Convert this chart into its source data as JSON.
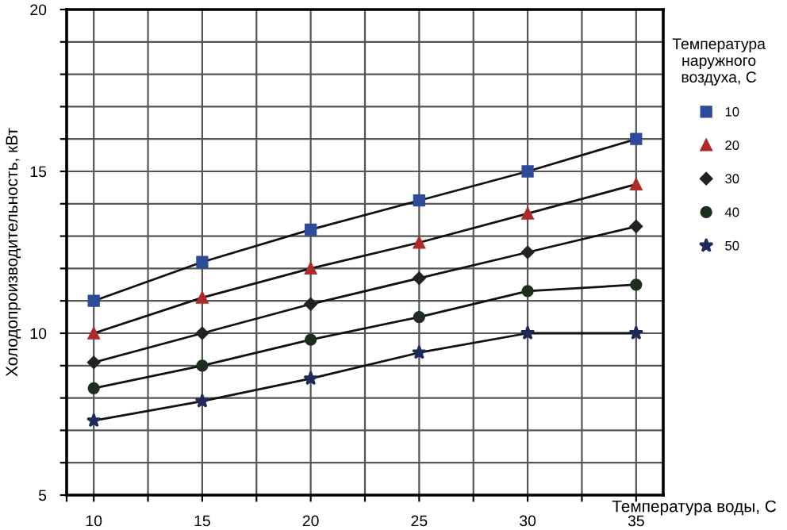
{
  "chart_data": {
    "type": "line",
    "xlabel": "Температура воды, С",
    "ylabel": "Холодопроизводительность, кВт",
    "legend_title": "Температура\nнаружного\nвоздуха, С",
    "x": [
      10,
      15,
      20,
      25,
      30,
      35
    ],
    "xlim": [
      8.75,
      36.25
    ],
    "xticks": [
      {
        "value": 8.75,
        "label": null
      },
      10,
      {
        "value": 12.5,
        "label": null
      },
      15,
      {
        "value": 17.5,
        "label": null
      },
      20,
      {
        "value": 22.5,
        "label": null
      },
      25,
      {
        "value": 27.5,
        "label": null
      },
      30,
      {
        "value": 32.5,
        "label": null
      },
      35
    ],
    "ylim": [
      5,
      20
    ],
    "yticks": [
      5,
      {
        "value": 6,
        "label": null
      },
      {
        "value": 7,
        "label": null
      },
      {
        "value": 8,
        "label": null
      },
      {
        "value": 9,
        "label": null
      },
      10,
      {
        "value": 11,
        "label": null
      },
      {
        "value": 12,
        "label": null
      },
      {
        "value": 13,
        "label": null
      },
      {
        "value": 14,
        "label": null
      },
      15,
      {
        "value": 16,
        "label": null
      },
      {
        "value": 17,
        "label": null
      },
      {
        "value": 18,
        "label": null
      },
      {
        "value": 19,
        "label": null
      },
      20
    ],
    "grid": true,
    "legend": "right",
    "line_style": "solid",
    "series": [
      {
        "name": "10",
        "color": "#2e4a9a",
        "marker": "square",
        "values": [
          11.0,
          12.2,
          13.2,
          14.1,
          15.0,
          16.0
        ]
      },
      {
        "name": "20",
        "color": "#b02a2a",
        "marker": "triangle",
        "values": [
          10.0,
          11.1,
          12.0,
          12.8,
          13.7,
          14.6
        ]
      },
      {
        "name": "30",
        "color": "#222222",
        "marker": "diamond",
        "values": [
          9.1,
          10.0,
          10.9,
          11.7,
          12.5,
          13.3
        ]
      },
      {
        "name": "40",
        "color": "#1e2e1e",
        "marker": "circle",
        "values": [
          8.3,
          9.0,
          9.8,
          10.5,
          11.3,
          11.5
        ]
      },
      {
        "name": "50",
        "color": "#1e2a5a",
        "marker": "star",
        "values": [
          7.3,
          7.9,
          8.6,
          9.4,
          10.0,
          10.0
        ]
      }
    ]
  }
}
